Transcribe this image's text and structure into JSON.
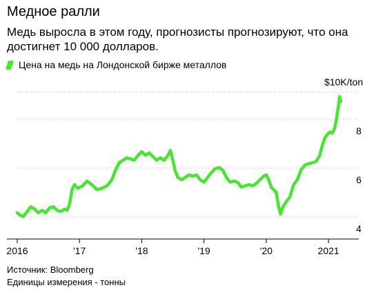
{
  "header": {
    "title": "Медное ралли",
    "subtitle": "Медь выросла в этом году, прогнозисты прогнозируют, что она достигнет 10 000 долларов."
  },
  "legend": {
    "label": "Цена на медь на Лондонской бирже металлов",
    "color": "#44e62e"
  },
  "footer": {
    "source": "Источник: Bloomberg",
    "units": "Единицы измерения - тонны"
  },
  "chart_data": {
    "type": "line",
    "title": "Медное ралли",
    "unit_label": "$10K/ton",
    "xlabel": "",
    "ylabel": "",
    "xlim": [
      2016.0,
      2021.55
    ],
    "ylim": [
      3.8,
      10.6
    ],
    "x_ticks": [
      {
        "value": 2016,
        "label": "2016"
      },
      {
        "value": 2017,
        "label": "'17"
      },
      {
        "value": 2018,
        "label": "'18"
      },
      {
        "value": 2019,
        "label": "'19"
      },
      {
        "value": 2020,
        "label": "'20"
      },
      {
        "value": 2021,
        "label": "2021"
      }
    ],
    "y_ticks": [
      {
        "value": 4,
        "label": "4"
      },
      {
        "value": 6,
        "label": "6"
      },
      {
        "value": 8,
        "label": "8"
      }
    ],
    "grid": true,
    "series": [
      {
        "name": "Цена на медь на Лондонской бирже металлов",
        "color": "#44e62e",
        "points": [
          [
            2016.0,
            4.65
          ],
          [
            2016.05,
            4.55
          ],
          [
            2016.1,
            4.5
          ],
          [
            2016.16,
            4.7
          ],
          [
            2016.22,
            4.9
          ],
          [
            2016.28,
            4.8
          ],
          [
            2016.34,
            4.65
          ],
          [
            2016.4,
            4.75
          ],
          [
            2016.46,
            4.65
          ],
          [
            2016.52,
            4.85
          ],
          [
            2016.58,
            4.9
          ],
          [
            2016.64,
            4.75
          ],
          [
            2016.7,
            4.7
          ],
          [
            2016.76,
            4.8
          ],
          [
            2016.8,
            4.75
          ],
          [
            2016.84,
            5.0
          ],
          [
            2016.88,
            5.6
          ],
          [
            2016.92,
            5.8
          ],
          [
            2016.97,
            5.65
          ],
          [
            2017.05,
            5.75
          ],
          [
            2017.12,
            5.95
          ],
          [
            2017.2,
            5.8
          ],
          [
            2017.28,
            5.6
          ],
          [
            2017.36,
            5.65
          ],
          [
            2017.44,
            5.75
          ],
          [
            2017.52,
            6.0
          ],
          [
            2017.58,
            6.4
          ],
          [
            2017.64,
            6.7
          ],
          [
            2017.7,
            6.8
          ],
          [
            2017.76,
            6.9
          ],
          [
            2017.82,
            6.85
          ],
          [
            2017.88,
            6.8
          ],
          [
            2017.94,
            7.0
          ],
          [
            2018.0,
            7.15
          ],
          [
            2018.06,
            7.0
          ],
          [
            2018.12,
            7.1
          ],
          [
            2018.18,
            6.95
          ],
          [
            2018.24,
            6.8
          ],
          [
            2018.3,
            6.9
          ],
          [
            2018.36,
            6.8
          ],
          [
            2018.42,
            7.0
          ],
          [
            2018.46,
            7.2
          ],
          [
            2018.5,
            6.8
          ],
          [
            2018.54,
            6.35
          ],
          [
            2018.58,
            6.1
          ],
          [
            2018.64,
            6.0
          ],
          [
            2018.7,
            6.1
          ],
          [
            2018.76,
            6.2
          ],
          [
            2018.82,
            6.15
          ],
          [
            2018.88,
            6.2
          ],
          [
            2018.94,
            6.0
          ],
          [
            2019.0,
            5.9
          ],
          [
            2019.06,
            6.1
          ],
          [
            2019.12,
            6.3
          ],
          [
            2019.18,
            6.45
          ],
          [
            2019.24,
            6.5
          ],
          [
            2019.3,
            6.4
          ],
          [
            2019.36,
            6.1
          ],
          [
            2019.42,
            5.9
          ],
          [
            2019.48,
            5.95
          ],
          [
            2019.54,
            5.9
          ],
          [
            2019.6,
            5.7
          ],
          [
            2019.66,
            5.75
          ],
          [
            2019.72,
            5.8
          ],
          [
            2019.78,
            5.75
          ],
          [
            2019.84,
            5.85
          ],
          [
            2019.9,
            6.0
          ],
          [
            2019.96,
            6.15
          ],
          [
            2020.0,
            6.2
          ],
          [
            2020.04,
            6.0
          ],
          [
            2020.08,
            5.7
          ],
          [
            2020.12,
            5.6
          ],
          [
            2020.16,
            5.5
          ],
          [
            2020.2,
            4.9
          ],
          [
            2020.23,
            4.6
          ],
          [
            2020.27,
            4.9
          ],
          [
            2020.32,
            5.1
          ],
          [
            2020.38,
            5.3
          ],
          [
            2020.44,
            5.8
          ],
          [
            2020.5,
            6.0
          ],
          [
            2020.56,
            6.4
          ],
          [
            2020.62,
            6.6
          ],
          [
            2020.68,
            6.65
          ],
          [
            2020.74,
            6.7
          ],
          [
            2020.8,
            6.75
          ],
          [
            2020.86,
            7.0
          ],
          [
            2020.9,
            7.4
          ],
          [
            2020.94,
            7.7
          ],
          [
            2020.98,
            7.85
          ],
          [
            2021.02,
            7.95
          ],
          [
            2021.06,
            7.9
          ],
          [
            2021.1,
            8.1
          ],
          [
            2021.13,
            8.5
          ],
          [
            2021.16,
            9.0
          ],
          [
            2021.18,
            9.4
          ],
          [
            2021.2,
            9.2
          ]
        ]
      }
    ],
    "y_axis_side": "right",
    "legend_position": "top-left"
  }
}
